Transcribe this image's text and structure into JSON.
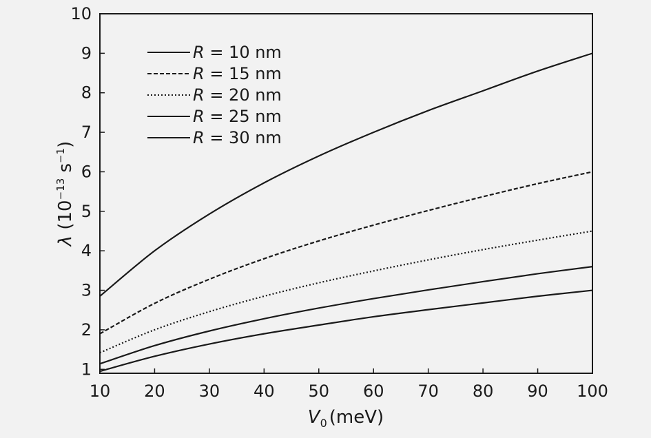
{
  "chart_data": {
    "type": "line",
    "xlabel": {
      "var": "V",
      "sub": "0",
      "unit": "(meV)"
    },
    "ylabel": {
      "var": "λ",
      "unit_prefix": " (10",
      "exp": "−13",
      "unit_mid": " s",
      "exp2": "−1",
      "unit_suffix": ")"
    },
    "xlim": [
      10,
      100
    ],
    "ylim": [
      0.9,
      10
    ],
    "xticks": [
      "10",
      "20",
      "30",
      "40",
      "50",
      "60",
      "70",
      "80",
      "90",
      "100"
    ],
    "yticks": [
      "1",
      "2",
      "3",
      "4",
      "5",
      "6",
      "7",
      "8",
      "9",
      "10"
    ],
    "grid": false,
    "legend_position": "top-left",
    "x": [
      10,
      20,
      30,
      40,
      50,
      60,
      70,
      80,
      90,
      100
    ],
    "series": [
      {
        "var": "R",
        "name": " = 10 nm",
        "style": "solid",
        "values": [
          2.85,
          4.0,
          4.93,
          5.72,
          6.4,
          7.0,
          7.55,
          8.05,
          8.55,
          9.0
        ]
      },
      {
        "var": "R",
        "name": " = 15 nm",
        "style": "dashed",
        "values": [
          1.9,
          2.67,
          3.28,
          3.8,
          4.25,
          4.65,
          5.02,
          5.37,
          5.7,
          6.0
        ]
      },
      {
        "var": "R",
        "name": " = 20 nm",
        "style": "dotted",
        "values": [
          1.42,
          2.0,
          2.46,
          2.85,
          3.19,
          3.49,
          3.77,
          4.03,
          4.27,
          4.5
        ]
      },
      {
        "var": "R",
        "name": " = 25 nm",
        "style": "solid",
        "values": [
          1.14,
          1.6,
          1.97,
          2.28,
          2.55,
          2.79,
          3.01,
          3.22,
          3.42,
          3.6
        ]
      },
      {
        "var": "R",
        "name": " = 30 nm",
        "style": "solid",
        "values": [
          0.95,
          1.33,
          1.64,
          1.9,
          2.12,
          2.33,
          2.51,
          2.68,
          2.85,
          3.0
        ]
      }
    ]
  }
}
